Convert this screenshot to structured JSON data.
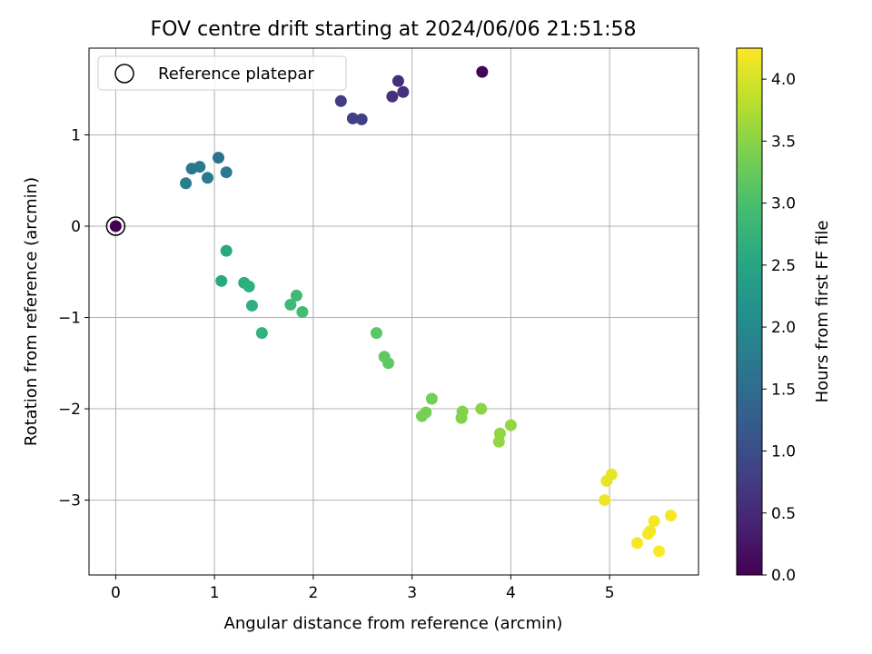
{
  "chart_data": {
    "type": "scatter",
    "title": "FOV centre drift starting at 2024/06/06 21:51:58",
    "xlabel": "Angular distance from reference (arcmin)",
    "ylabel": "Rotation from reference (arcmin)",
    "xlim": [
      -0.27,
      5.9
    ],
    "ylim": [
      -3.82,
      1.95
    ],
    "xticks": [
      0,
      1,
      2,
      3,
      4,
      5
    ],
    "yticks": [
      -3,
      -2,
      -1,
      0,
      1
    ],
    "grid": true,
    "legend": {
      "position": "top-left",
      "entries": [
        "Reference platepar"
      ]
    },
    "reference_point": {
      "x": 0,
      "y": 0
    },
    "colorbar": {
      "label": "Hours from first FF file",
      "colormap": "viridis",
      "range": [
        0,
        4.25
      ],
      "ticks": [
        "0.0",
        "0.5",
        "1.0",
        "1.5",
        "2.0",
        "2.5",
        "3.0",
        "3.5",
        "4.0"
      ]
    },
    "points": [
      {
        "x": 0.0,
        "y": 0.0,
        "hours": 0.0
      },
      {
        "x": 3.71,
        "y": 1.69,
        "hours": 0.05
      },
      {
        "x": 2.86,
        "y": 1.59,
        "hours": 0.55
      },
      {
        "x": 2.91,
        "y": 1.47,
        "hours": 0.6
      },
      {
        "x": 2.8,
        "y": 1.42,
        "hours": 0.6
      },
      {
        "x": 2.28,
        "y": 1.37,
        "hours": 0.75
      },
      {
        "x": 2.4,
        "y": 1.18,
        "hours": 0.8
      },
      {
        "x": 2.49,
        "y": 1.17,
        "hours": 0.8
      },
      {
        "x": 1.04,
        "y": 0.75,
        "hours": 1.6
      },
      {
        "x": 0.85,
        "y": 0.65,
        "hours": 1.7
      },
      {
        "x": 0.77,
        "y": 0.63,
        "hours": 1.7
      },
      {
        "x": 1.12,
        "y": 0.59,
        "hours": 1.75
      },
      {
        "x": 0.93,
        "y": 0.53,
        "hours": 1.75
      },
      {
        "x": 0.71,
        "y": 0.47,
        "hours": 1.8
      },
      {
        "x": 1.12,
        "y": -0.27,
        "hours": 2.55
      },
      {
        "x": 1.07,
        "y": -0.6,
        "hours": 2.55
      },
      {
        "x": 1.3,
        "y": -0.62,
        "hours": 2.65
      },
      {
        "x": 1.35,
        "y": -0.66,
        "hours": 2.7
      },
      {
        "x": 1.38,
        "y": -0.87,
        "hours": 2.7
      },
      {
        "x": 1.48,
        "y": -1.17,
        "hours": 2.75
      },
      {
        "x": 1.83,
        "y": -0.76,
        "hours": 2.9
      },
      {
        "x": 1.77,
        "y": -0.86,
        "hours": 2.9
      },
      {
        "x": 1.89,
        "y": -0.94,
        "hours": 2.95
      },
      {
        "x": 2.64,
        "y": -1.17,
        "hours": 3.15
      },
      {
        "x": 2.72,
        "y": -1.43,
        "hours": 3.2
      },
      {
        "x": 2.76,
        "y": -1.5,
        "hours": 3.2
      },
      {
        "x": 3.2,
        "y": -1.89,
        "hours": 3.35
      },
      {
        "x": 3.14,
        "y": -2.04,
        "hours": 3.35
      },
      {
        "x": 3.1,
        "y": -2.08,
        "hours": 3.35
      },
      {
        "x": 3.51,
        "y": -2.03,
        "hours": 3.45
      },
      {
        "x": 3.5,
        "y": -2.1,
        "hours": 3.45
      },
      {
        "x": 3.7,
        "y": -2.0,
        "hours": 3.5
      },
      {
        "x": 4.0,
        "y": -2.18,
        "hours": 3.55
      },
      {
        "x": 3.89,
        "y": -2.27,
        "hours": 3.55
      },
      {
        "x": 3.88,
        "y": -2.36,
        "hours": 3.55
      },
      {
        "x": 5.02,
        "y": -2.72,
        "hours": 4.1
      },
      {
        "x": 4.97,
        "y": -2.79,
        "hours": 4.1
      },
      {
        "x": 4.95,
        "y": -3.0,
        "hours": 4.15
      },
      {
        "x": 5.45,
        "y": -3.23,
        "hours": 4.2
      },
      {
        "x": 5.62,
        "y": -3.17,
        "hours": 4.2
      },
      {
        "x": 5.41,
        "y": -3.34,
        "hours": 4.2
      },
      {
        "x": 5.39,
        "y": -3.37,
        "hours": 4.2
      },
      {
        "x": 5.28,
        "y": -3.47,
        "hours": 4.2
      },
      {
        "x": 5.5,
        "y": -3.56,
        "hours": 4.25
      }
    ]
  }
}
